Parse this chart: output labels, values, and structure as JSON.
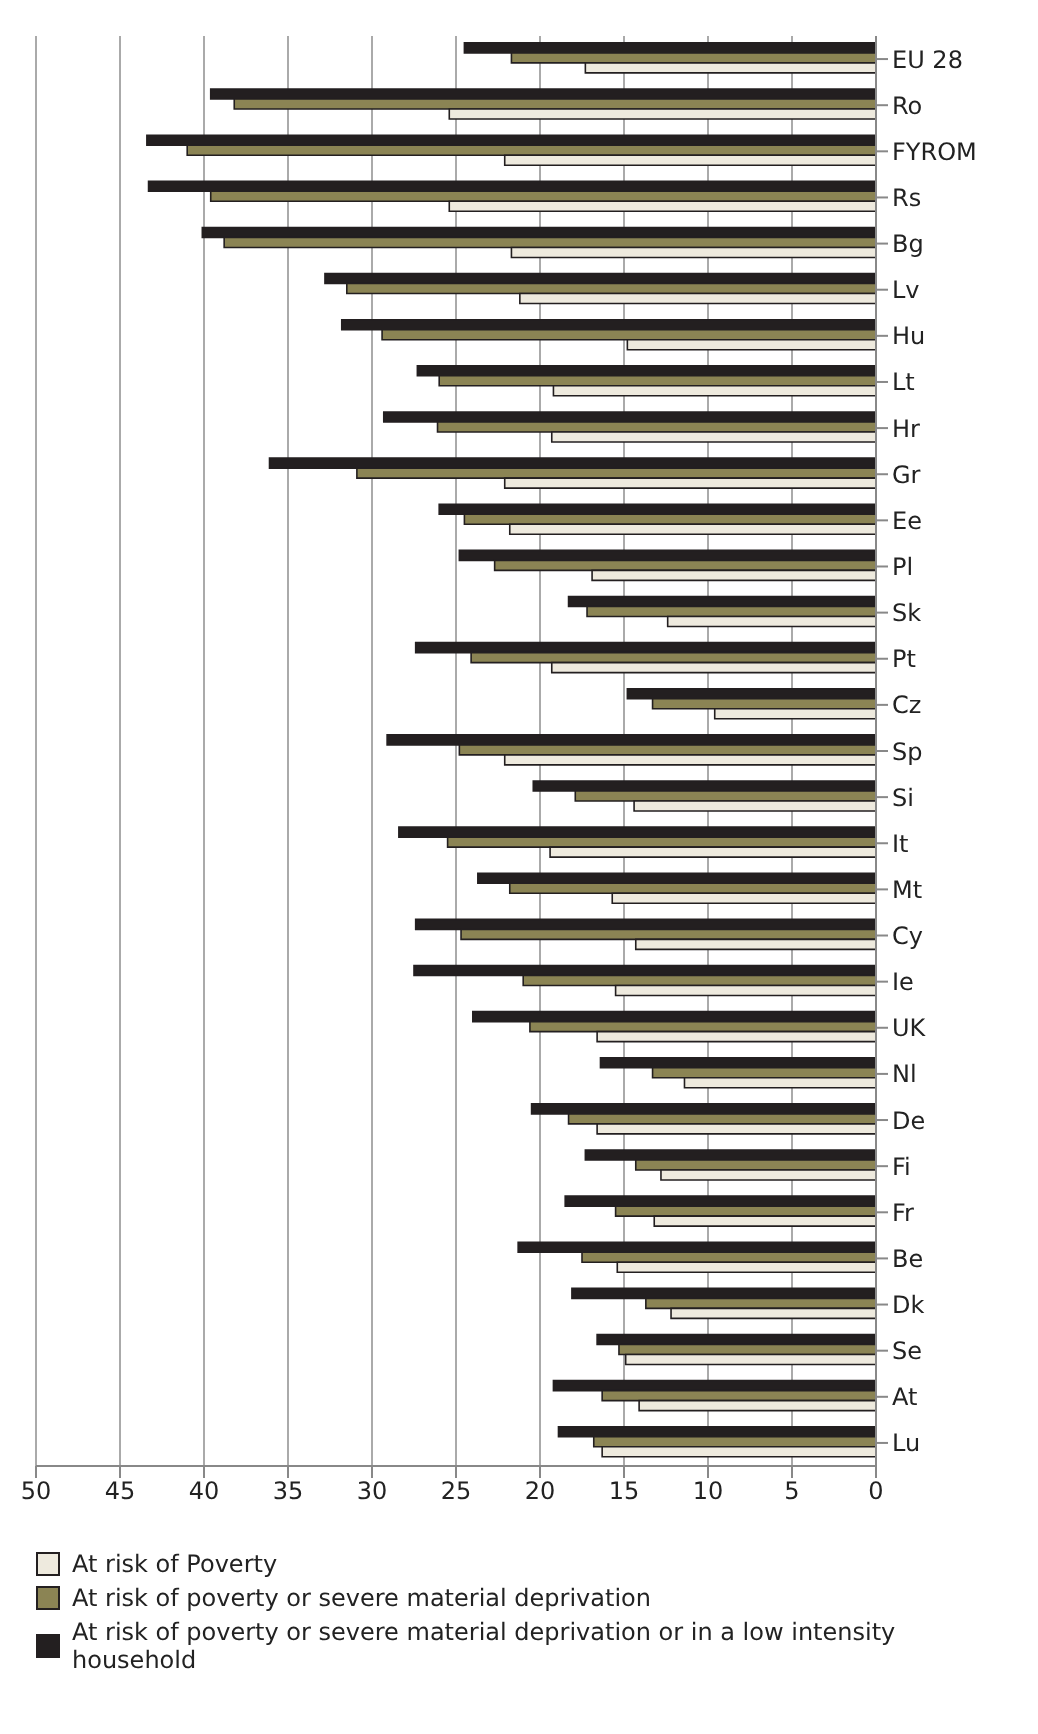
{
  "chart_data": {
    "type": "bar",
    "orientation": "horizontal",
    "categories": [
      "EU 28",
      "Ro",
      "FYROM",
      "Rs",
      "Bg",
      "Lv",
      "Hu",
      "Lt",
      "Hr",
      "Gr",
      "Ee",
      "Pl",
      "Sk",
      "Pt",
      "Cz",
      "Sp",
      "Si",
      "It",
      "Mt",
      "Cy",
      "Ie",
      "UK",
      "Nl",
      "De",
      "Fi",
      "Fr",
      "Be",
      "Dk",
      "Se",
      "At",
      "Lu"
    ],
    "series": [
      {
        "name": "At risk of Poverty",
        "color": "#eeeade",
        "values": [
          17.3,
          25.4,
          22.1,
          25.4,
          21.7,
          21.2,
          14.8,
          19.2,
          19.3,
          22.1,
          21.8,
          16.9,
          12.4,
          19.3,
          9.6,
          22.1,
          14.4,
          19.4,
          15.7,
          14.3,
          15.5,
          16.6,
          11.4,
          16.6,
          12.8,
          13.2,
          15.4,
          12.2,
          14.9,
          14.1,
          16.3
        ]
      },
      {
        "name": "At risk of poverty or severe material deprivation",
        "color": "#8b8454",
        "values": [
          21.7,
          38.2,
          41.0,
          39.6,
          38.8,
          31.5,
          29.4,
          26.0,
          26.1,
          30.9,
          24.5,
          22.7,
          17.2,
          24.1,
          13.3,
          24.8,
          17.9,
          25.5,
          21.8,
          24.7,
          21.0,
          20.6,
          13.3,
          18.3,
          14.3,
          15.5,
          17.5,
          13.7,
          15.3,
          16.3,
          16.8
        ]
      },
      {
        "name": "At risk of poverty or severe material deprivation or in a low intensity household",
        "color": "#231f20",
        "values": [
          24.5,
          39.6,
          43.4,
          43.3,
          40.1,
          32.8,
          31.8,
          27.3,
          29.3,
          36.1,
          26.0,
          24.8,
          18.3,
          27.4,
          14.8,
          29.1,
          20.4,
          28.4,
          23.7,
          27.4,
          27.5,
          24.0,
          16.4,
          20.5,
          17.3,
          18.5,
          21.3,
          18.1,
          16.6,
          19.2,
          18.9
        ]
      }
    ],
    "xlim": [
      50,
      0
    ],
    "xticks": [
      50,
      45,
      40,
      35,
      30,
      25,
      20,
      15,
      10,
      5,
      0
    ],
    "grid": "x",
    "legend": "bottom"
  }
}
